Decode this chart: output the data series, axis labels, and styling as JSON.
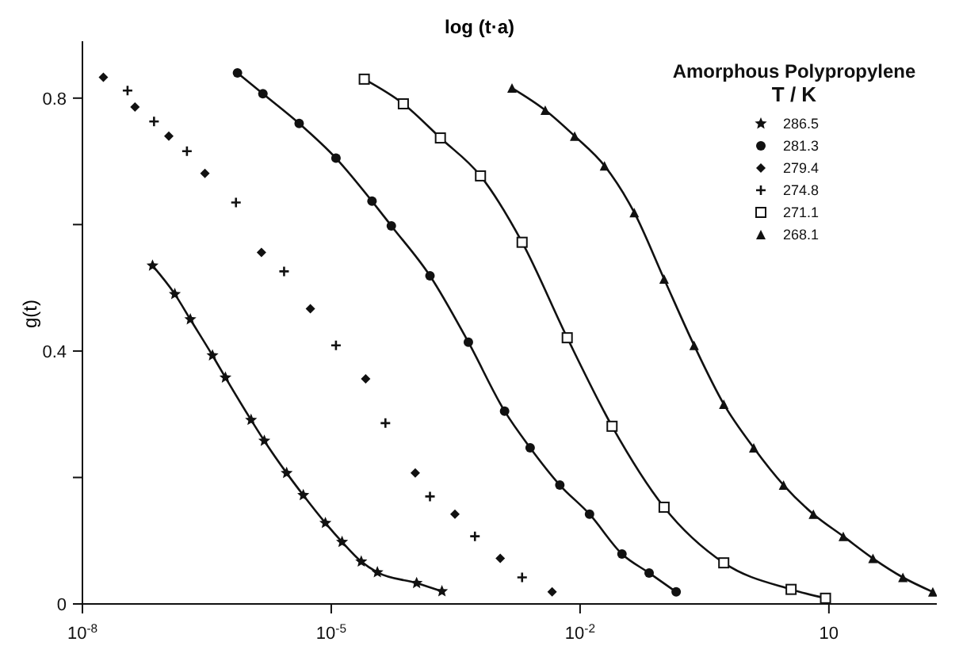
{
  "chart_data": {
    "type": "line",
    "title": "log (t·a)",
    "ylabel": "g(t)",
    "legend_title": "T / K",
    "annotations": [
      "Amorphous Polypropylene"
    ],
    "log": "x",
    "xlim": [
      1e-08,
      200
    ],
    "xticks": [
      {
        "value": 1e-08,
        "label": "10$^{-8}$"
      },
      {
        "value": 1e-05,
        "label": "10$^{-5}$"
      },
      {
        "value": 0.01,
        "label": "10$^{-2}$"
      },
      {
        "value": 10,
        "label": "10"
      }
    ],
    "ylim": [
      0,
      0.89
    ],
    "yticks": [
      0,
      {
        "value": 0.2,
        "label": null
      },
      0.4,
      {
        "value": 0.6,
        "label": null
      },
      0.8
    ],
    "grid": false,
    "legend": "top right",
    "line_style": "solid",
    "series": [
      {
        "name": "286.5",
        "marker": "star",
        "color": "#111111",
        "x": [
          7e-08,
          1.3e-07,
          2e-07,
          3.7e-07,
          5.3e-07,
          1.08e-06,
          1.56e-06,
          2.9e-06,
          4.6e-06,
          8.5e-06,
          1.35e-05,
          2.3e-05,
          3.6e-05,
          0.000107,
          0.000216
        ],
        "values": [
          0.535,
          0.49,
          0.45,
          0.393,
          0.358,
          0.291,
          0.258,
          0.207,
          0.172,
          0.128,
          0.098,
          0.067,
          0.05,
          0.033,
          0.02
        ]
      },
      {
        "name": "281.3",
        "marker": "circle",
        "color": "#111111",
        "x": [
          7.4e-07,
          1.5e-06,
          4.1e-06,
          1.14e-05,
          3.1e-05,
          5.3e-05,
          0.000155,
          0.00045,
          0.00123,
          0.0025,
          0.0057,
          0.013,
          0.032,
          0.068,
          0.144
        ],
        "values": [
          0.84,
          0.807,
          0.76,
          0.705,
          0.637,
          0.598,
          0.519,
          0.414,
          0.305,
          0.247,
          0.188,
          0.142,
          0.079,
          0.049,
          0.019
        ]
      },
      {
        "name": "279.4",
        "type": "scatter",
        "marker": "diamond",
        "color": "#111111",
        "x": [
          1.79e-08,
          4.3e-08,
          1.1e-07,
          3e-07,
          1.44e-06,
          5.6e-06,
          2.6e-05,
          0.000103,
          0.00031,
          0.00109,
          0.0046
        ],
        "values": [
          0.833,
          0.786,
          0.74,
          0.681,
          0.556,
          0.467,
          0.356,
          0.207,
          0.142,
          0.072,
          0.019
        ]
      },
      {
        "name": "274.8",
        "type": "scatter",
        "marker": "cross",
        "color": "#111111",
        "x": [
          3.5e-08,
          7.3e-08,
          1.82e-07,
          7.1e-07,
          2.7e-06,
          1.14e-05,
          4.5e-05,
          0.000155,
          0.00054,
          0.002
        ],
        "values": [
          0.812,
          0.763,
          0.716,
          0.635,
          0.526,
          0.409,
          0.286,
          0.17,
          0.107,
          0.042
        ]
      },
      {
        "name": "271.1",
        "marker": "square",
        "color": "#111111",
        "x": [
          2.5e-05,
          7.4e-05,
          0.000207,
          0.00063,
          0.002,
          0.007,
          0.0243,
          0.103,
          0.54,
          3.5,
          9.1
        ],
        "values": [
          0.83,
          0.791,
          0.737,
          0.677,
          0.572,
          0.421,
          0.281,
          0.153,
          0.065,
          0.023,
          0.009
        ]
      },
      {
        "name": "268.1",
        "marker": "triangle",
        "color": "#111111",
        "x": [
          0.00151,
          0.0038,
          0.0086,
          0.0197,
          0.045,
          0.103,
          0.237,
          0.54,
          1.24,
          2.84,
          6.5,
          14.9,
          34,
          78,
          179
        ],
        "values": [
          0.816,
          0.781,
          0.74,
          0.693,
          0.619,
          0.514,
          0.409,
          0.316,
          0.247,
          0.188,
          0.142,
          0.107,
          0.072,
          0.042,
          0.019
        ]
      }
    ]
  }
}
